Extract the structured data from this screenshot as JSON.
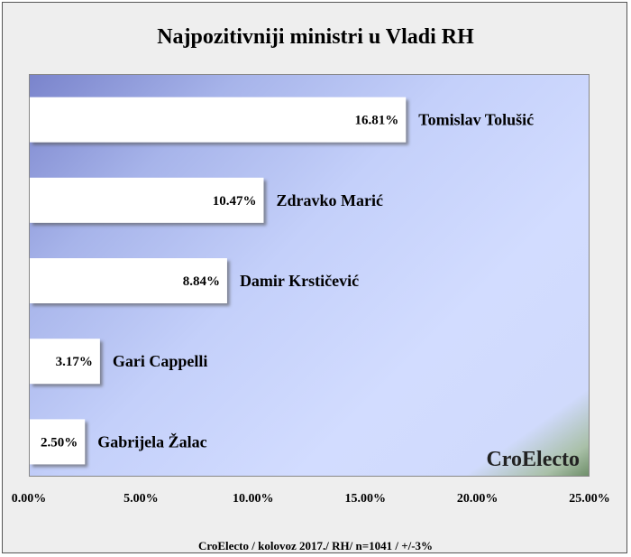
{
  "chart_data": {
    "type": "bar",
    "orientation": "horizontal",
    "title": "Najpozitivniji ministri u Vladi RH",
    "categories": [
      "Tomislav Tolušić",
      "Zdravko Marić",
      "Damir Krstičević",
      "Gari Cappelli",
      "Gabrijela Žalac"
    ],
    "values": [
      16.81,
      10.47,
      8.84,
      3.17,
      2.5
    ],
    "value_labels": [
      "16.81%",
      "10.47%",
      "8.84%",
      "3.17%",
      "2.50%"
    ],
    "xlim": [
      0,
      25
    ],
    "x_ticks": [
      "0.00%",
      "5.00%",
      "10.00%",
      "15.00%",
      "20.00%",
      "25.00%"
    ],
    "xlabel": "",
    "ylabel": "",
    "grid": false,
    "legend": "none",
    "watermark": "CroElecto",
    "footnote": "CroElecto / kolovoz 2017./ RH/ n=1041 / +/-3%",
    "colors": {
      "bar_fill": "#ffffff",
      "frame_bg": "#eeeeee",
      "text": "#000000"
    }
  }
}
